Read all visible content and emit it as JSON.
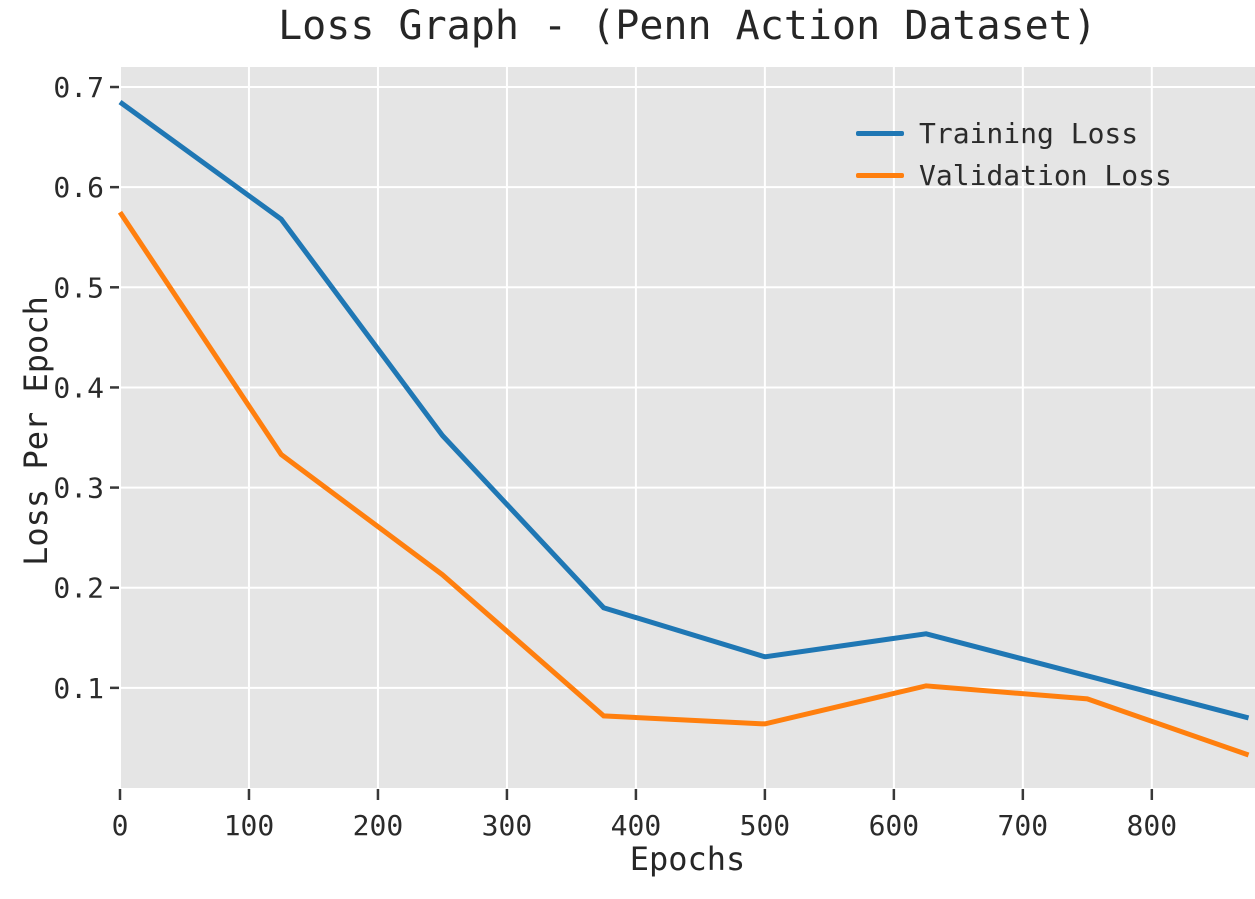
{
  "chart_data": {
    "type": "line",
    "title": "Loss Graph - (Penn Action Dataset)",
    "xlabel": "Epochs",
    "ylabel": "Loss Per Epoch",
    "x": [
      0,
      125,
      250,
      375,
      500,
      625,
      750,
      875
    ],
    "series": [
      {
        "name": "Training Loss",
        "color": "#1f77b4",
        "values": [
          0.685,
          0.568,
          0.352,
          0.18,
          0.131,
          0.154,
          0.112,
          0.07
        ]
      },
      {
        "name": "Validation Loss",
        "color": "#ff7f0e",
        "values": [
          0.575,
          0.333,
          0.213,
          0.072,
          0.064,
          0.102,
          0.089,
          0.033
        ]
      }
    ],
    "xlim": [
      0,
      880
    ],
    "ylim": [
      0,
      0.72
    ],
    "xticks": [
      0,
      100,
      200,
      300,
      400,
      500,
      600,
      700,
      800
    ],
    "yticks": [
      0.1,
      0.2,
      0.3,
      0.4,
      0.5,
      0.6,
      0.7
    ],
    "grid": true,
    "legend_position": "upper right",
    "colors": {
      "plot_background": "#e5e5e5",
      "grid_line": "#ffffff",
      "tick_mark": "#383838",
      "tick_label": "#2b2b2b",
      "text": "#262626"
    }
  }
}
